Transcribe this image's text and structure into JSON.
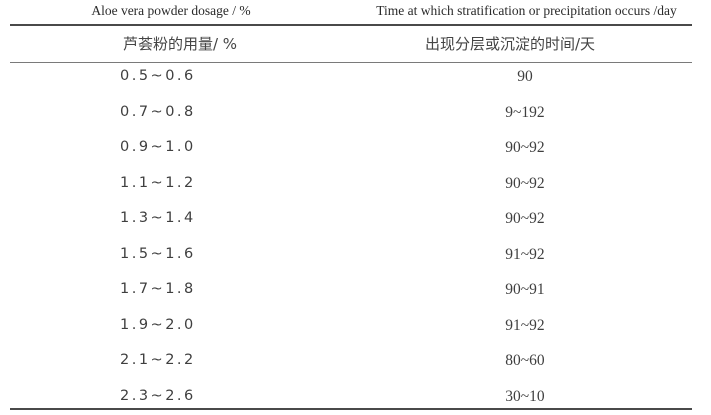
{
  "table": {
    "header_en": {
      "col1": "Aloe vera powder dosage / %",
      "col2": "Time at which stratification or precipitation occurs /day"
    },
    "header_zh": {
      "col1": "芦荟粉的用量/ %",
      "col2": "出现分层或沉淀的时间/天"
    },
    "rows": [
      {
        "dosage": "0.5~0.6",
        "time": "90"
      },
      {
        "dosage": "0.7~0.8",
        "time": "9~192"
      },
      {
        "dosage": "0.9~1.0",
        "time": "90~92"
      },
      {
        "dosage": "1.1~1.2",
        "time": "90~92"
      },
      {
        "dosage": "1.3~1.4",
        "time": "90~92"
      },
      {
        "dosage": "1.5~1.6",
        "time": "91~92"
      },
      {
        "dosage": "1.7~1.8",
        "time": "90~91"
      },
      {
        "dosage": "1.9~2.0",
        "time": "91~92"
      },
      {
        "dosage": "2.1~2.2",
        "time": "80~60"
      },
      {
        "dosage": "2.3~2.6",
        "time": "30~10"
      }
    ]
  }
}
